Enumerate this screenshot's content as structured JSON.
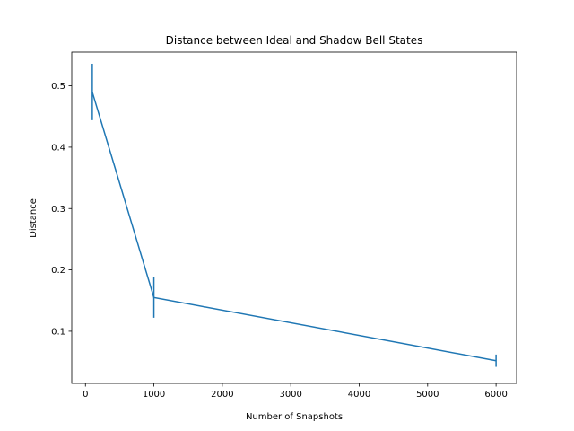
{
  "chart_data": {
    "type": "line",
    "title": "Distance between Ideal and Shadow Bell States",
    "xlabel": "Number of Snapshots",
    "ylabel": "Distance",
    "xlim": [
      -200,
      6300
    ],
    "ylim": [
      0.015,
      0.555
    ],
    "xticks": [
      0,
      1000,
      2000,
      3000,
      4000,
      5000,
      6000
    ],
    "xtick_labels": [
      "0",
      "1000",
      "2000",
      "3000",
      "4000",
      "5000",
      "6000"
    ],
    "yticks": [
      0.1,
      0.2,
      0.3,
      0.4,
      0.5
    ],
    "ytick_labels": [
      "0.1",
      "0.2",
      "0.3",
      "0.4",
      "0.5"
    ],
    "grid": false,
    "series": [
      {
        "color": "#1f77b4",
        "x": [
          100,
          1000,
          6000
        ],
        "y": [
          0.49,
          0.155,
          0.052
        ],
        "yerr": [
          0.046,
          0.033,
          0.01
        ]
      }
    ]
  }
}
